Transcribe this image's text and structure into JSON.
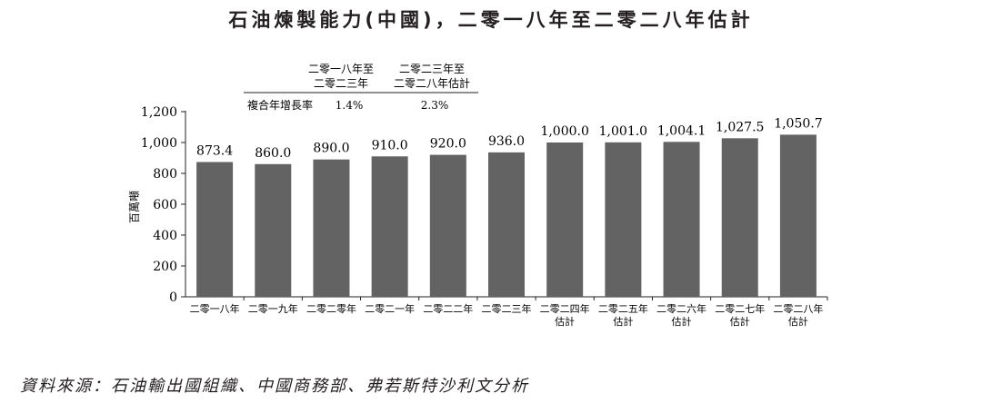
{
  "title": "石油煉製能力(中國)，二零一八年至二零二八年估計",
  "source": "資料來源：石油輸出國組織、中國商務部、弗若斯特沙利文分析",
  "cagr": {
    "row_label": "複合年增長率",
    "periods": [
      {
        "line1": "二零一八年至",
        "line2": "二零二三年",
        "value": "1.4%"
      },
      {
        "line1": "二零二三年至",
        "line2": "二零二八年估計",
        "value": "2.3%"
      }
    ]
  },
  "chart_data": {
    "type": "bar",
    "title": "石油煉製能力(中國)，二零一八年至二零二八年估計",
    "ylabel": "百萬噸",
    "xlabel": "",
    "ylim": [
      0,
      1200
    ],
    "yticks": [
      "0",
      "200",
      "400",
      "600",
      "800",
      "1,000",
      "1,200"
    ],
    "grid": false,
    "bar_color": "#636363",
    "categories": [
      [
        "二零一八年"
      ],
      [
        "二零一九年"
      ],
      [
        "二零二零年"
      ],
      [
        "二零二一年"
      ],
      [
        "二零二二年"
      ],
      [
        "二零二三年"
      ],
      [
        "二零二四年",
        "估計"
      ],
      [
        "二零二五年",
        "估計"
      ],
      [
        "二零二六年",
        "估計"
      ],
      [
        "二零二七年",
        "估計"
      ],
      [
        "二零二八年",
        "估計"
      ]
    ],
    "values": [
      873.4,
      860.0,
      890.0,
      910.0,
      920.0,
      936.0,
      1000.0,
      1001.0,
      1004.1,
      1027.5,
      1050.7
    ],
    "value_labels": [
      "873.4",
      "860.0",
      "890.0",
      "910.0",
      "920.0",
      "936.0",
      "1,000.0",
      "1,001.0",
      "1,004.1",
      "1,027.5",
      "1,050.7"
    ]
  }
}
